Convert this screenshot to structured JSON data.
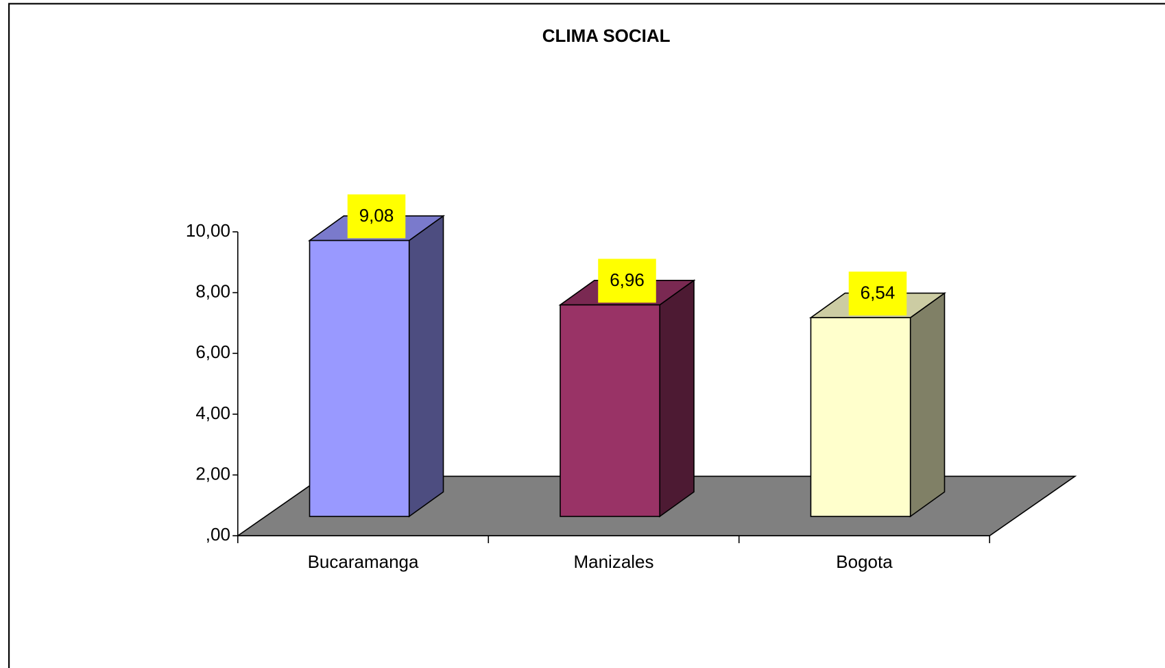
{
  "chart_data": {
    "type": "bar",
    "title": "CLIMA SOCIAL",
    "categories": [
      "Bucaramanga",
      "Manizales",
      "Bogota"
    ],
    "values": [
      9.08,
      6.96,
      6.54
    ],
    "value_labels": [
      "9,08",
      "6,96",
      "6,54"
    ],
    "colors": [
      "#9999ff",
      "#993366",
      "#ffffcc"
    ],
    "ylim": [
      0,
      10
    ],
    "yticks": [
      {
        "value": 0,
        "label": ",00"
      },
      {
        "value": 2,
        "label": "2,00"
      },
      {
        "value": 4,
        "label": "4,00"
      },
      {
        "value": 6,
        "label": "6,00"
      },
      {
        "value": 8,
        "label": "8,00"
      },
      {
        "value": 10,
        "label": "10,00"
      }
    ]
  }
}
